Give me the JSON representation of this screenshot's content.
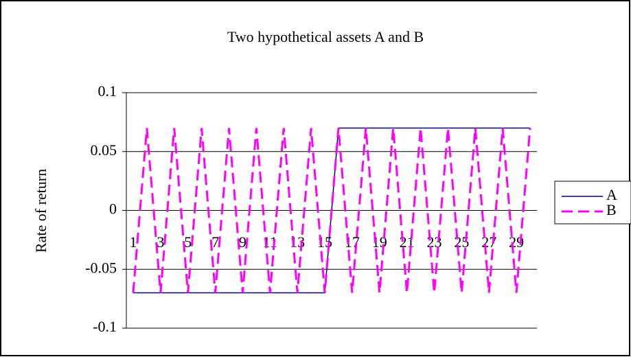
{
  "chart_data": {
    "type": "line",
    "title": "Two hypothetical assets A and B",
    "y_label": "Rate of return",
    "categories": [
      "1",
      null,
      "3",
      null,
      "5",
      null,
      "7",
      null,
      "9",
      null,
      "11",
      null,
      "13",
      null,
      "15",
      null,
      "17",
      null,
      "19",
      null,
      "21",
      null,
      "23",
      null,
      "25",
      null,
      "27",
      null,
      "29",
      null
    ],
    "series": [
      {
        "name": "A",
        "color": "#000080",
        "dashed": false,
        "values": [
          -0.07,
          -0.07,
          -0.07,
          -0.07,
          -0.07,
          -0.07,
          -0.07,
          -0.07,
          -0.07,
          -0.07,
          -0.07,
          -0.07,
          -0.07,
          -0.07,
          -0.07,
          0.07,
          0.07,
          0.07,
          0.07,
          0.07,
          0.07,
          0.07,
          0.07,
          0.07,
          0.07,
          0.07,
          0.07,
          0.07,
          0.07,
          0.07
        ]
      },
      {
        "name": "B",
        "color": "#ff00ff",
        "dashed": true,
        "values": [
          -0.07,
          0.07,
          -0.07,
          0.07,
          -0.07,
          0.07,
          -0.07,
          0.07,
          -0.07,
          0.07,
          -0.07,
          0.07,
          -0.07,
          0.07,
          -0.07,
          0.07,
          -0.07,
          0.07,
          -0.07,
          0.07,
          -0.07,
          0.07,
          -0.07,
          0.07,
          -0.07,
          0.07,
          -0.07,
          0.07,
          -0.07,
          0.07
        ]
      }
    ],
    "ylim": [
      -0.1,
      0.1
    ],
    "yticks": [
      -0.1,
      -0.05,
      0,
      0.05,
      0.1
    ],
    "grid": true,
    "legend": "right"
  }
}
